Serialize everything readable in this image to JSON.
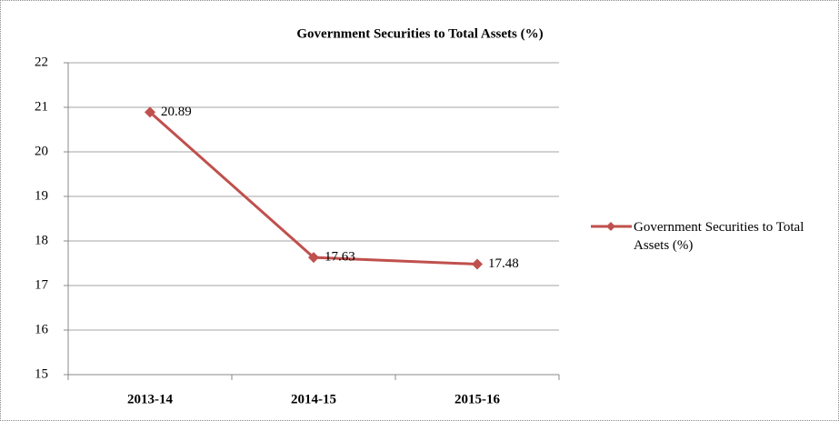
{
  "chart_data": {
    "type": "line",
    "title": "Government Securities to Total Assets (%)",
    "categories": [
      "2013-14",
      "2014-15",
      "2015-16"
    ],
    "series": [
      {
        "name": "Government Securities to Total Assets (%)",
        "color": "#c0504d",
        "values": [
          20.89,
          17.63,
          17.48
        ]
      }
    ],
    "ylim": [
      15,
      22
    ],
    "yticks": [
      15,
      16,
      17,
      18,
      19,
      20,
      21,
      22
    ],
    "grid": true,
    "legend": "right",
    "data_labels": true
  }
}
